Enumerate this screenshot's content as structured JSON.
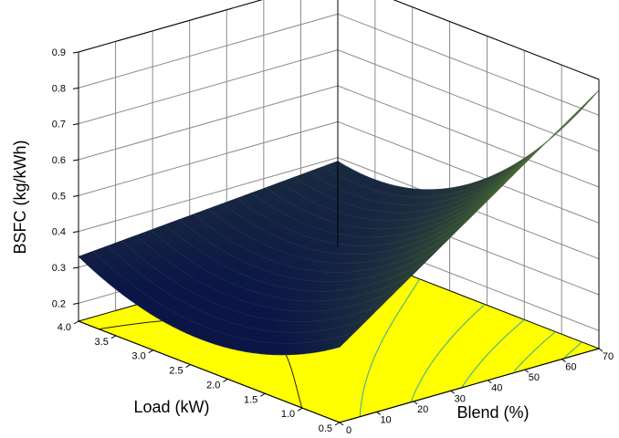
{
  "chart_data": {
    "type": "surface3d",
    "title": "",
    "xlabel": "Blend (%)",
    "ylabel": "Load (kW)",
    "zlabel": "BSFC (kg/kWh)",
    "x_ticks": [
      "0",
      "10",
      "20",
      "30",
      "40",
      "50",
      "60",
      "70"
    ],
    "y_ticks": [
      "0.5",
      "1.0",
      "1.5",
      "2.0",
      "2.5",
      "3.0",
      "3.5",
      "4.0"
    ],
    "z_ticks": [
      "0.2",
      "0.3",
      "0.4",
      "0.5",
      "0.6",
      "0.7",
      "0.8",
      "0.9"
    ],
    "xlim": [
      0,
      70
    ],
    "ylim": [
      0.5,
      4.0
    ],
    "zlim": [
      0.2,
      0.9
    ],
    "grid": true,
    "floor_color": "#ffff00",
    "surface_colors": {
      "low": "#0b1646",
      "high": "#4a6a28"
    },
    "contour_color": "#2aa7a7",
    "corner_values": [
      {
        "blend": 0,
        "load": 4.0,
        "bsfc": 0.33
      },
      {
        "blend": 0,
        "load": 0.5,
        "bsfc": 0.36
      },
      {
        "blend": 70,
        "load": 4.0,
        "bsfc": 0.38
      },
      {
        "blend": 70,
        "load": 0.5,
        "bsfc": 0.85
      }
    ],
    "minimum": {
      "blend": 0,
      "load": 2.4,
      "bsfc": 0.25
    }
  }
}
